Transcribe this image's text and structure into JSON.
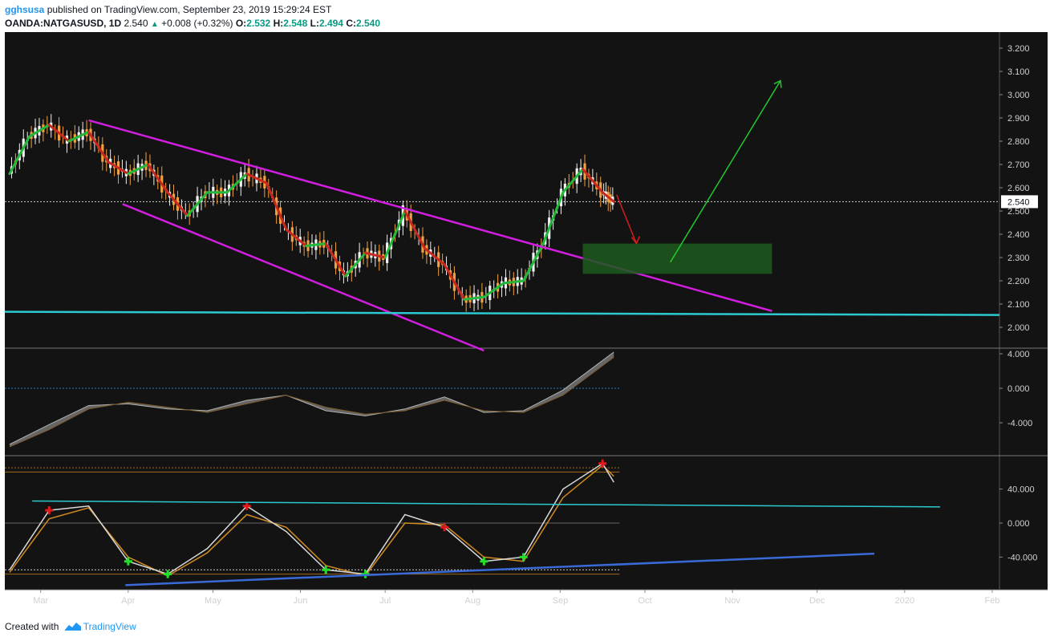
{
  "header": {
    "author": "gghsusa",
    "published_text": "published on TradingView.com, September 23, 2019 15:29:24 EST",
    "symbol": "OANDA:NATGASUSD, 1D",
    "last": "2.540",
    "change": "+0.008 (+0.32%)",
    "o_label": "O:",
    "o_value": "2.532",
    "h_label": "H:",
    "h_value": "2.548",
    "l_label": "L:",
    "l_value": "2.494",
    "c_label": "C:",
    "c_value": "2.540"
  },
  "footer": {
    "created_with": "Created with",
    "brand": "TradingView"
  },
  "colors": {
    "background": "#131313",
    "up_candle": "#f0f0f0",
    "down_candle": "#f0a040",
    "ema_up": "#22b83a",
    "ema_down": "#c8281e",
    "channel": "#d21ee0",
    "support": "#2ccad0",
    "target_zone": "#1d5a1d",
    "up_arrow": "#22c82e",
    "down_arrow": "#d21e1e",
    "osc_fast": "#d8d8d8",
    "osc_slow": "#d08a20",
    "trend_lower": "#3a6ad8"
  },
  "chart_data": [
    {
      "type": "candlestick",
      "symbol": "OANDA:NATGASUSD",
      "interval": "1D",
      "x_tick_labels": [
        "Mar",
        "Apr",
        "May",
        "Jun",
        "Jul",
        "Aug",
        "Sep",
        "Oct",
        "Nov",
        "Dec",
        "2020",
        "Feb"
      ],
      "y_tick_labels": [
        "3.200",
        "3.100",
        "3.000",
        "2.900",
        "2.800",
        "2.700",
        "2.600",
        "2.500",
        "2.400",
        "2.300",
        "2.200",
        "2.100",
        "2.000"
      ],
      "ylim": [
        1.9,
        3.25
      ],
      "last_price_label": "2.540",
      "series": [
        {
          "name": "close",
          "x": [
            "2019-02-18",
            "2019-02-25",
            "2019-03-04",
            "2019-03-11",
            "2019-03-18",
            "2019-03-25",
            "2019-04-01",
            "2019-04-08",
            "2019-04-15",
            "2019-04-22",
            "2019-04-29",
            "2019-05-06",
            "2019-05-13",
            "2019-05-20",
            "2019-05-27",
            "2019-06-03",
            "2019-06-10",
            "2019-06-17",
            "2019-06-24",
            "2019-07-01",
            "2019-07-08",
            "2019-07-15",
            "2019-07-22",
            "2019-07-29",
            "2019-08-05",
            "2019-08-12",
            "2019-08-19",
            "2019-08-26",
            "2019-09-02",
            "2019-09-09",
            "2019-09-16",
            "2019-09-20"
          ],
          "values": [
            2.66,
            2.82,
            2.87,
            2.8,
            2.84,
            2.71,
            2.66,
            2.7,
            2.58,
            2.48,
            2.58,
            2.58,
            2.66,
            2.62,
            2.42,
            2.35,
            2.36,
            2.22,
            2.32,
            2.3,
            2.5,
            2.34,
            2.27,
            2.12,
            2.13,
            2.19,
            2.2,
            2.36,
            2.58,
            2.68,
            2.58,
            2.54
          ]
        }
      ],
      "annotations": {
        "target_zone": [
          2.23,
          2.36
        ],
        "support_level": 2.06,
        "arrow_down_end": 2.36,
        "arrow_up_end": 3.06
      }
    },
    {
      "type": "area",
      "name": "oscillator",
      "y_tick_labels": [
        "4.000",
        "0.000",
        "-4.000"
      ],
      "ylim": [
        -7,
        4.5
      ],
      "x": [
        "2019-02-18",
        "2019-03-04",
        "2019-03-18",
        "2019-04-01",
        "2019-04-15",
        "2019-04-29",
        "2019-05-13",
        "2019-05-27",
        "2019-06-10",
        "2019-06-24",
        "2019-07-08",
        "2019-07-22",
        "2019-08-05",
        "2019-08-19",
        "2019-09-02",
        "2019-09-20"
      ],
      "series": [
        {
          "name": "fast",
          "values": [
            -6.5,
            -4.2,
            -2.0,
            -1.8,
            -2.4,
            -2.6,
            -1.4,
            -0.8,
            -2.6,
            -3.2,
            -2.4,
            -1.0,
            -2.8,
            -2.6,
            -0.2,
            4.2
          ]
        },
        {
          "name": "slow",
          "values": [
            -6.8,
            -4.8,
            -2.4,
            -1.6,
            -2.2,
            -2.8,
            -1.8,
            -0.8,
            -2.2,
            -3.0,
            -2.6,
            -1.4,
            -2.6,
            -2.8,
            -0.8,
            3.6
          ]
        }
      ]
    },
    {
      "type": "line",
      "name": "stochastic",
      "y_tick_labels": [
        "40.000",
        "0.000",
        "-40.000"
      ],
      "ylim": [
        -80,
        80
      ],
      "x": [
        "2019-02-18",
        "2019-03-04",
        "2019-03-18",
        "2019-04-01",
        "2019-04-15",
        "2019-04-29",
        "2019-05-13",
        "2019-05-27",
        "2019-06-10",
        "2019-06-24",
        "2019-07-08",
        "2019-07-22",
        "2019-08-05",
        "2019-08-19",
        "2019-09-02",
        "2019-09-16",
        "2019-09-20"
      ],
      "series": [
        {
          "name": "fast",
          "values": [
            -55,
            15,
            20,
            -45,
            -60,
            -30,
            20,
            -10,
            -55,
            -60,
            10,
            -5,
            -45,
            -40,
            40,
            70,
            48
          ]
        },
        {
          "name": "slow",
          "values": [
            -58,
            5,
            18,
            -40,
            -62,
            -35,
            10,
            -5,
            -50,
            -62,
            0,
            -2,
            -40,
            -45,
            30,
            68,
            55
          ]
        }
      ],
      "levels": [
        60,
        0,
        -60
      ]
    }
  ]
}
